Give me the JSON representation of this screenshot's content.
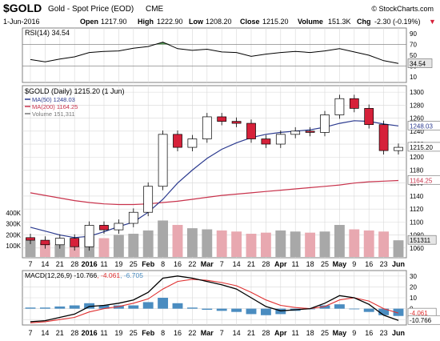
{
  "header": {
    "symbol": "$GOLD",
    "name": "Gold - Spot Price (EOD)",
    "exchange": "CME",
    "copyright": "© StockCharts.com",
    "date": "1-Jun-2016",
    "open_label": "Open",
    "open": "1217.90",
    "high_label": "High",
    "high": "1222.90",
    "low_label": "Low",
    "low": "1208.20",
    "close_label": "Close",
    "close": "1215.20",
    "volume_label": "Volume",
    "volume": "151.3K",
    "chg_label": "Chg",
    "chg": "-2.30 (-0.19%)",
    "chg_arrow": "▼"
  },
  "colors": {
    "up_candle": "#ffffff",
    "down_candle": "#d6213a",
    "candle_outline": "#000000",
    "ma50": "#2b3a8f",
    "ma200": "#c8334c",
    "volume_up": "#a8a8a8",
    "volume_down": "#e8a8b0",
    "rsi_line": "#000000",
    "rsi_overbought_fill": "#3a8a3a",
    "macd_line": "#000000",
    "signal_line": "#e03030",
    "histogram": "#4a8cc0",
    "grid": "#d8d8d8",
    "border": "#808080",
    "tag_bg": "#e6e6e6"
  },
  "chart_data": [
    {
      "type": "line",
      "panel": "rsi",
      "title": "RSI(14) 34.54",
      "y_ticks": [
        10,
        30,
        50,
        70,
        90
      ],
      "ylim": [
        0,
        100
      ],
      "reference_levels": [
        30,
        70
      ],
      "current_value": "34.54",
      "x": [
        "2015-12-07",
        "2015-12-14",
        "2015-12-21",
        "2015-12-28",
        "2016-01-04",
        "2016-01-11",
        "2016-01-19",
        "2016-01-25",
        "2016-02-01",
        "2016-02-08",
        "2016-02-16",
        "2016-02-22",
        "2016-02-29",
        "2016-03-07",
        "2016-03-14",
        "2016-03-21",
        "2016-03-28",
        "2016-04-04",
        "2016-04-11",
        "2016-04-18",
        "2016-04-25",
        "2016-05-02",
        "2016-05-09",
        "2016-05-16",
        "2016-05-23",
        "2016-05-31"
      ],
      "values": [
        42,
        38,
        43,
        47,
        55,
        57,
        58,
        63,
        66,
        74,
        62,
        59,
        61,
        56,
        55,
        48,
        52,
        55,
        57,
        55,
        58,
        62,
        56,
        50,
        40,
        35
      ]
    },
    {
      "type": "candlestick",
      "panel": "price",
      "title": "$GOLD (Daily) 1215.20 (1 Jun)",
      "y_ticks": [
        1060,
        1080,
        1100,
        1120,
        1140,
        1160,
        1180,
        1200,
        1220,
        1240,
        1260,
        1280,
        1300
      ],
      "ylim": [
        1045,
        1310
      ],
      "x_tick_labels": [
        "7",
        "14",
        "21",
        "28",
        "2016",
        "11",
        "19",
        "25",
        "Feb",
        "8",
        "16",
        "22",
        "Mar",
        "7",
        "14",
        "21",
        "28",
        "Apr",
        "11",
        "18",
        "25",
        "May",
        "9",
        "16",
        "23",
        "Jun"
      ],
      "x": [
        "2015-12-07",
        "2015-12-14",
        "2015-12-21",
        "2015-12-28",
        "2016-01-04",
        "2016-01-11",
        "2016-01-19",
        "2016-01-25",
        "2016-02-01",
        "2016-02-08",
        "2016-02-16",
        "2016-02-22",
        "2016-02-29",
        "2016-03-07",
        "2016-03-14",
        "2016-03-21",
        "2016-03-28",
        "2016-04-04",
        "2016-04-11",
        "2016-04-18",
        "2016-04-25",
        "2016-05-02",
        "2016-05-09",
        "2016-05-16",
        "2016-05-23",
        "2016-05-31"
      ],
      "close": [
        1072,
        1065,
        1075,
        1062,
        1095,
        1088,
        1098,
        1115,
        1155,
        1235,
        1215,
        1228,
        1262,
        1255,
        1252,
        1228,
        1220,
        1235,
        1240,
        1238,
        1265,
        1290,
        1275,
        1250,
        1210,
        1215
      ],
      "series": [
        {
          "name": "MA(50) 1248.03",
          "current": "1248.03",
          "values": [
            1092,
            1086,
            1080,
            1076,
            1078,
            1085,
            1093,
            1100,
            1115,
            1135,
            1160,
            1180,
            1198,
            1212,
            1222,
            1230,
            1235,
            1238,
            1240,
            1242,
            1246,
            1252,
            1256,
            1255,
            1251,
            1248
          ]
        },
        {
          "name": "MA(200) 1164.25",
          "current": "1164.25",
          "values": [
            1145,
            1141,
            1137,
            1133,
            1130,
            1128,
            1127,
            1127,
            1128,
            1130,
            1132,
            1135,
            1138,
            1141,
            1143,
            1145,
            1147,
            1149,
            1151,
            1153,
            1155,
            1157,
            1160,
            1162,
            1163,
            1164
          ]
        }
      ],
      "current_price_tag": "1215.20"
    },
    {
      "type": "bar",
      "panel": "volume",
      "title": "Volume 151,311",
      "y_ticks": [
        "100K",
        "200K",
        "300K",
        "400K"
      ],
      "ylim": [
        0,
        500
      ],
      "units": "thousands",
      "x": [
        "2015-12-07",
        "2015-12-14",
        "2015-12-21",
        "2015-12-28",
        "2016-01-04",
        "2016-01-11",
        "2016-01-19",
        "2016-01-25",
        "2016-02-01",
        "2016-02-08",
        "2016-02-16",
        "2016-02-22",
        "2016-02-29",
        "2016-03-07",
        "2016-03-14",
        "2016-03-21",
        "2016-03-28",
        "2016-04-04",
        "2016-04-11",
        "2016-04-18",
        "2016-04-25",
        "2016-05-02",
        "2016-05-09",
        "2016-05-16",
        "2016-05-23",
        "2016-05-31"
      ],
      "values": [
        150,
        130,
        110,
        95,
        190,
        170,
        200,
        210,
        240,
        330,
        290,
        260,
        250,
        240,
        230,
        210,
        220,
        240,
        230,
        220,
        230,
        290,
        250,
        240,
        230,
        151
      ],
      "current_value_tag": "151311"
    },
    {
      "type": "line",
      "panel": "macd",
      "title": "MACD(12,26,9)",
      "legend": [
        "-10.766",
        "-4.061",
        "-6.705"
      ],
      "y_ticks": [
        -10,
        0,
        10,
        20,
        30
      ],
      "ylim": [
        -15,
        35
      ],
      "x_tick_labels": [
        "7",
        "14",
        "21",
        "28",
        "2016",
        "11",
        "19",
        "25",
        "Feb",
        "8",
        "16",
        "22",
        "Mar",
        "7",
        "14",
        "21",
        "28",
        "Apr",
        "11",
        "18",
        "25",
        "May",
        "9",
        "16",
        "23",
        "Jun"
      ],
      "x": [
        "2015-12-07",
        "2015-12-14",
        "2015-12-21",
        "2015-12-28",
        "2016-01-04",
        "2016-01-11",
        "2016-01-19",
        "2016-01-25",
        "2016-02-01",
        "2016-02-08",
        "2016-02-16",
        "2016-02-22",
        "2016-02-29",
        "2016-03-07",
        "2016-03-14",
        "2016-03-21",
        "2016-03-28",
        "2016-04-04",
        "2016-04-11",
        "2016-04-18",
        "2016-04-25",
        "2016-05-02",
        "2016-05-09",
        "2016-05-16",
        "2016-05-23",
        "2016-05-31"
      ],
      "series": [
        {
          "values": [
            -12,
            -11,
            -8,
            -5,
            2,
            3,
            5,
            8,
            15,
            28,
            30,
            28,
            25,
            22,
            18,
            10,
            2,
            -2,
            -1,
            0,
            5,
            12,
            10,
            4,
            -6,
            -10.766
          ]
        },
        {
          "values": [
            -13,
            -12,
            -10,
            -8,
            -3,
            0,
            2,
            5,
            9,
            18,
            25,
            27,
            26,
            24,
            21,
            15,
            8,
            3,
            1,
            0,
            2,
            8,
            10,
            7,
            0,
            -4.061
          ]
        }
      ],
      "histogram": [
        1,
        1,
        2,
        3,
        5,
        3,
        3,
        3,
        6,
        10,
        5,
        1,
        -1,
        -2,
        -3,
        -5,
        -6,
        -5,
        -2,
        0,
        3,
        4,
        0,
        -3,
        -6,
        -6.705
      ],
      "current_tags": [
        "-4.061",
        "-10.766"
      ]
    }
  ]
}
